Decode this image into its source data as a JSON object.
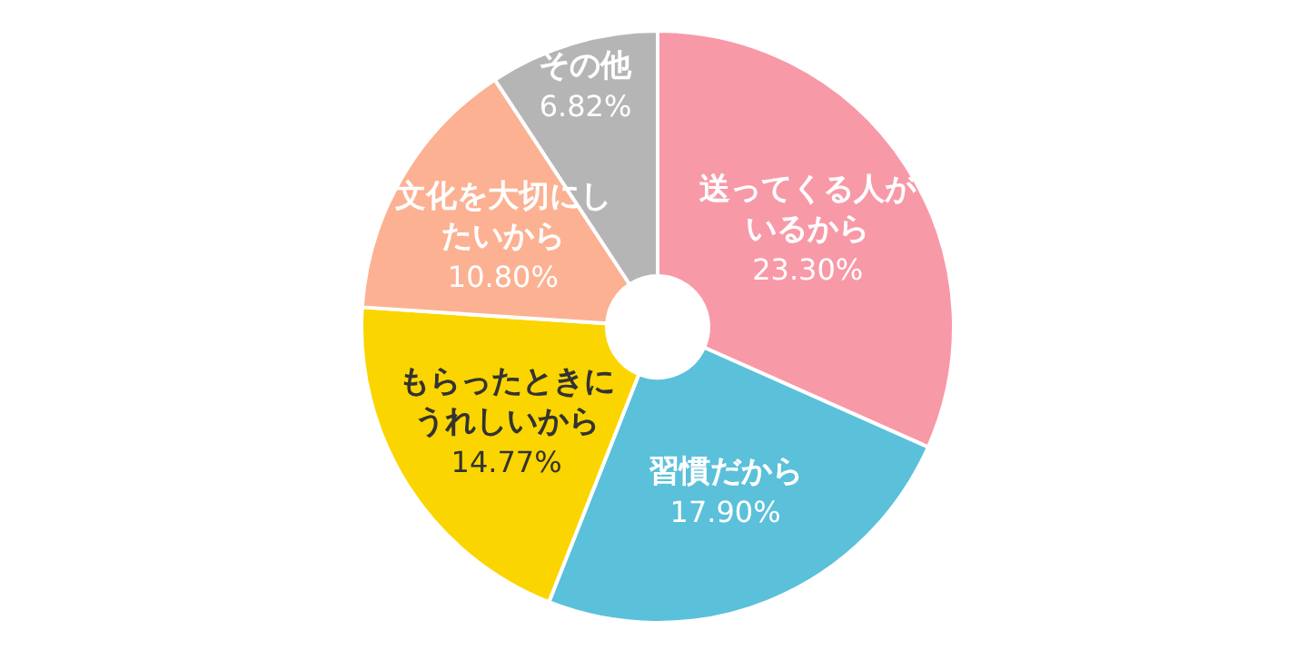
{
  "chart_data": {
    "type": "donut",
    "categories": [
      "送ってくる人がいるから",
      "習慣だから",
      "もらったときにうれしいから",
      "文化を大切にしたいから",
      "その他"
    ],
    "values": [
      23.3,
      17.9,
      14.77,
      10.8,
      6.82
    ],
    "value_labels": [
      "23.30%",
      "17.90%",
      "14.77%",
      "10.80%",
      "6.82%"
    ],
    "colors": [
      "#f899a8",
      "#5bc0da",
      "#fbd500",
      "#fcb193",
      "#b5b5b5"
    ],
    "legend": false
  }
}
